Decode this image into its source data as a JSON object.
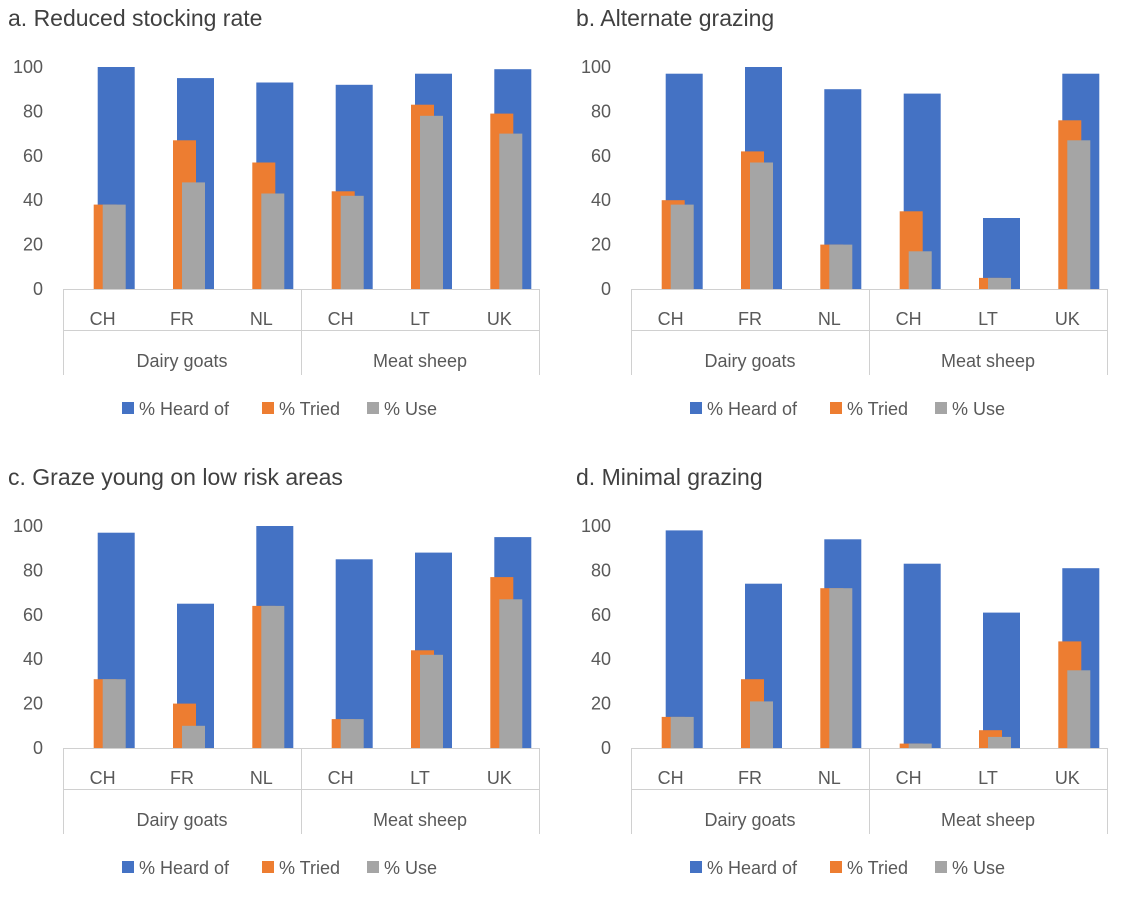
{
  "colors": {
    "heard": "#4472C4",
    "tried": "#ED7D31",
    "use": "#A5A5A5"
  },
  "chart_data": [
    {
      "type": "bar",
      "title": "a. Reduced stocking rate",
      "categories": [
        "CH",
        "FR",
        "NL",
        "CH",
        "LT",
        "UK"
      ],
      "groups": [
        {
          "label": "Dairy goats",
          "span": [
            0,
            2
          ]
        },
        {
          "label": "Meat sheep",
          "span": [
            3,
            5
          ]
        }
      ],
      "ylim": [
        0,
        100
      ],
      "yticks": [
        "0",
        "20",
        "40",
        "60",
        "80",
        "100"
      ],
      "legend": "bottom",
      "grid": false,
      "series": [
        {
          "name": "% Heard of",
          "values": [
            100,
            95,
            93,
            92,
            97,
            99
          ]
        },
        {
          "name": "% Tried",
          "values": [
            38,
            67,
            57,
            44,
            83,
            79
          ]
        },
        {
          "name": "% Use",
          "values": [
            38,
            48,
            43,
            42,
            78,
            70
          ]
        }
      ]
    },
    {
      "type": "bar",
      "title": "b. Alternate grazing",
      "categories": [
        "CH",
        "FR",
        "NL",
        "CH",
        "LT",
        "UK"
      ],
      "groups": [
        {
          "label": "Dairy goats",
          "span": [
            0,
            2
          ]
        },
        {
          "label": "Meat sheep",
          "span": [
            3,
            5
          ]
        }
      ],
      "ylim": [
        0,
        100
      ],
      "yticks": [
        "0",
        "20",
        "40",
        "60",
        "80",
        "100"
      ],
      "legend": "bottom",
      "grid": false,
      "series": [
        {
          "name": "% Heard of",
          "values": [
            97,
            100,
            90,
            88,
            32,
            97
          ]
        },
        {
          "name": "% Tried",
          "values": [
            40,
            62,
            20,
            35,
            5,
            76
          ]
        },
        {
          "name": "% Use",
          "values": [
            38,
            57,
            20,
            17,
            5,
            67
          ]
        }
      ]
    },
    {
      "type": "bar",
      "title": "c. Graze young on low risk areas",
      "categories": [
        "CH",
        "FR",
        "NL",
        "CH",
        "LT",
        "UK"
      ],
      "groups": [
        {
          "label": "Dairy goats",
          "span": [
            0,
            2
          ]
        },
        {
          "label": "Meat sheep",
          "span": [
            3,
            5
          ]
        }
      ],
      "ylim": [
        0,
        100
      ],
      "yticks": [
        "0",
        "20",
        "40",
        "60",
        "80",
        "100"
      ],
      "legend": "bottom",
      "grid": false,
      "series": [
        {
          "name": "% Heard of",
          "values": [
            97,
            65,
            100,
            85,
            88,
            95
          ]
        },
        {
          "name": "% Tried",
          "values": [
            31,
            20,
            64,
            13,
            44,
            77
          ]
        },
        {
          "name": "% Use",
          "values": [
            31,
            10,
            64,
            13,
            42,
            67
          ]
        }
      ]
    },
    {
      "type": "bar",
      "title": "d. Minimal grazing",
      "categories": [
        "CH",
        "FR",
        "NL",
        "CH",
        "LT",
        "UK"
      ],
      "groups": [
        {
          "label": "Dairy goats",
          "span": [
            0,
            2
          ]
        },
        {
          "label": "Meat sheep",
          "span": [
            3,
            5
          ]
        }
      ],
      "ylim": [
        0,
        100
      ],
      "yticks": [
        "0",
        "20",
        "40",
        "60",
        "80",
        "100"
      ],
      "legend": "bottom",
      "grid": false,
      "series": [
        {
          "name": "% Heard of",
          "values": [
            98,
            74,
            94,
            83,
            61,
            81
          ]
        },
        {
          "name": "% Tried",
          "values": [
            14,
            31,
            72,
            2,
            8,
            48
          ]
        },
        {
          "name": "% Use",
          "values": [
            14,
            21,
            72,
            2,
            5,
            35
          ]
        }
      ]
    }
  ]
}
